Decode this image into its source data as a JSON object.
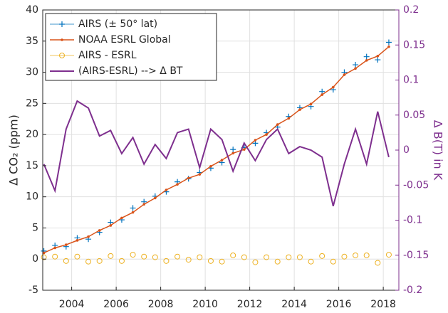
{
  "chart_data": {
    "type": "line",
    "ylabel": "Δ CO₂ (ppm)",
    "y2label": "Δ B(T) in K",
    "xlim": [
      2002.7,
      2018.7
    ],
    "xticks": [
      2004,
      2006,
      2008,
      2010,
      2012,
      2014,
      2016,
      2018
    ],
    "ylim": [
      -5,
      40
    ],
    "yticks": [
      -5,
      0,
      5,
      10,
      15,
      20,
      25,
      30,
      35,
      40
    ],
    "y2lim": [
      -0.2,
      0.2
    ],
    "y2ticks": [
      -0.2,
      -0.15,
      -0.1,
      -0.05,
      0,
      0.05,
      0.1,
      0.15,
      0.2
    ],
    "grid": true,
    "legend": "upper-left",
    "x": [
      2002.75,
      2003.25,
      2003.75,
      2004.25,
      2004.75,
      2005.25,
      2005.75,
      2006.25,
      2006.75,
      2007.25,
      2007.75,
      2008.25,
      2008.75,
      2009.25,
      2009.75,
      2010.25,
      2010.75,
      2011.25,
      2011.75,
      2012.25,
      2012.75,
      2013.25,
      2013.75,
      2014.25,
      2014.75,
      2015.25,
      2015.75,
      2016.25,
      2016.75,
      2017.25,
      2017.75,
      2018.25
    ],
    "series": [
      {
        "name": "AIRS (± 50° lat)",
        "color": "#0072bd",
        "marker": "plus",
        "line": false,
        "values": [
          1.3,
          2.2,
          2.0,
          3.4,
          3.2,
          4.3,
          5.9,
          6.3,
          8.2,
          9.2,
          10.1,
          10.8,
          12.4,
          12.9,
          13.9,
          14.6,
          15.5,
          17.6,
          17.9,
          18.6,
          20.3,
          21.2,
          22.9,
          24.3,
          24.5,
          26.9,
          27.2,
          30.0,
          31.2,
          32.5,
          32.0,
          34.8
        ]
      },
      {
        "name": "NOAA ESRL Global",
        "color": "#d95319",
        "marker": "dot",
        "line": true,
        "values": [
          1.0,
          1.8,
          2.3,
          3.0,
          3.6,
          4.6,
          5.4,
          6.6,
          7.5,
          8.8,
          9.8,
          11.1,
          12.0,
          13.0,
          13.6,
          14.9,
          15.9,
          17.0,
          17.6,
          19.1,
          20.0,
          21.6,
          22.6,
          24.0,
          24.9,
          26.4,
          27.6,
          29.6,
          30.6,
          31.9,
          32.6,
          34.1
        ]
      },
      {
        "name": "AIRS - ESRL",
        "color": "#edb120",
        "marker": "circle",
        "line": false,
        "values": [
          0.3,
          0.4,
          -0.3,
          0.4,
          -0.4,
          -0.3,
          0.5,
          -0.3,
          0.7,
          0.4,
          0.3,
          -0.3,
          0.4,
          -0.1,
          0.3,
          -0.3,
          -0.4,
          0.6,
          0.3,
          -0.5,
          0.3,
          -0.4,
          0.3,
          0.3,
          -0.4,
          0.5,
          -0.4,
          0.4,
          0.6,
          0.6,
          -0.6,
          0.7
        ]
      },
      {
        "name": "(AIRS-ESRL) --> Δ BT",
        "color": "#7e2f8e",
        "marker": "none",
        "line": true,
        "axis": "y2",
        "values": [
          -0.02,
          -0.058,
          0.03,
          0.07,
          0.06,
          0.02,
          0.028,
          -0.005,
          0.018,
          -0.02,
          0.008,
          -0.012,
          0.025,
          0.03,
          -0.025,
          0.03,
          0.015,
          -0.03,
          0.01,
          -0.015,
          0.015,
          0.03,
          -0.005,
          0.005,
          0.0,
          -0.01,
          -0.08,
          -0.02,
          0.03,
          -0.02,
          0.055,
          -0.01
        ]
      }
    ]
  }
}
